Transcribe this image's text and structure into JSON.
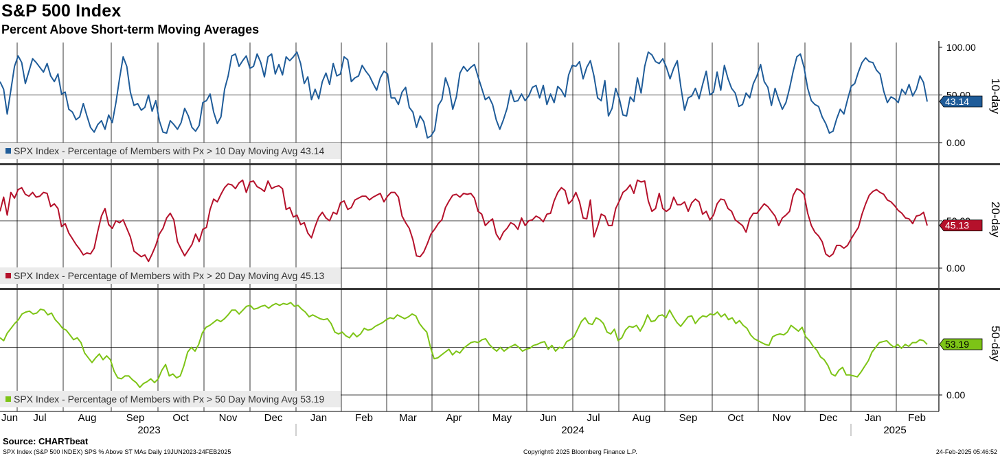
{
  "title": "S&P 500 Index",
  "subtitle": "Percent Above Short-term Moving Averages",
  "source": "Source: CHARTbeat",
  "footer": {
    "left": "SPX Index (S&P 500 INDEX) SPS % Above ST MAs  Daily 19JUN2023-24FEB2025",
    "center": "Copyright© 2025 Bloomberg Finance L.P.",
    "right": "24-Feb-2025 05:46:52"
  },
  "chart_data": {
    "type": "line",
    "x_range": [
      "2023-06-19",
      "2025-02-24"
    ],
    "x_month_labels": [
      "Jun",
      "Jul",
      "Aug",
      "Sep",
      "Oct",
      "Nov",
      "Dec",
      "Jan",
      "Feb",
      "Mar",
      "Apr",
      "May",
      "Jun",
      "Jul",
      "Aug",
      "Sep",
      "Oct",
      "Nov",
      "Dec",
      "Jan",
      "Feb"
    ],
    "x_year_labels": [
      "2023",
      "2024",
      "2025"
    ],
    "grid": true,
    "legend_position": "bottom-left",
    "panels": [
      {
        "name": "SPX Index - Percentage of Members with Px > 10 Day Moving Avg",
        "legend_value": "43.14",
        "last_value": "43.14",
        "side_label": "10-day",
        "color": "#1f5c99",
        "ylim": [
          0,
          100
        ],
        "y_ticks": [
          "100.00",
          "50.00",
          "0.00"
        ],
        "values": [
          64,
          56,
          30,
          55,
          80,
          91,
          84,
          62,
          75,
          88,
          84,
          79,
          74,
          83,
          70,
          64,
          72,
          51,
          53,
          35,
          32,
          24,
          27,
          41,
          28,
          16,
          11,
          19,
          23,
          14,
          29,
          21,
          42,
          67,
          90,
          80,
          53,
          39,
          41,
          34,
          37,
          50,
          33,
          44,
          23,
          11,
          10,
          23,
          19,
          14,
          21,
          36,
          28,
          16,
          12,
          18,
          42,
          44,
          51,
          32,
          20,
          27,
          56,
          70,
          91,
          93,
          80,
          86,
          91,
          78,
          80,
          93,
          84,
          69,
          90,
          93,
          72,
          82,
          71,
          90,
          86,
          90,
          95,
          83,
          62,
          69,
          45,
          56,
          46,
          64,
          73,
          61,
          83,
          70,
          72,
          90,
          87,
          64,
          68,
          70,
          81,
          75,
          70,
          62,
          55,
          68,
          75,
          72,
          47,
          47,
          40,
          53,
          58,
          37,
          32,
          16,
          28,
          22,
          5,
          7,
          13,
          39,
          45,
          68,
          57,
          35,
          48,
          73,
          80,
          75,
          79,
          82,
          69,
          57,
          45,
          48,
          40,
          24,
          14,
          24,
          36,
          55,
          43,
          44,
          51,
          44,
          49,
          58,
          60,
          47,
          60,
          40,
          51,
          42,
          59,
          55,
          48,
          71,
          81,
          80,
          85,
          67,
          79,
          86,
          70,
          47,
          44,
          65,
          28,
          36,
          57,
          46,
          29,
          28,
          48,
          43,
          68,
          52,
          80,
          95,
          92,
          85,
          83,
          88,
          79,
          67,
          78,
          86,
          58,
          34,
          47,
          49,
          57,
          46,
          61,
          75,
          50,
          53,
          74,
          55,
          81,
          67,
          57,
          52,
          38,
          40,
          52,
          47,
          62,
          70,
          82,
          64,
          58,
          39,
          57,
          45,
          35,
          42,
          57,
          75,
          90,
          93,
          79,
          57,
          44,
          40,
          38,
          27,
          20,
          10,
          12,
          25,
          35,
          30,
          45,
          59,
          62,
          74,
          84,
          89,
          85,
          84,
          76,
          72,
          54,
          42,
          48,
          46,
          42,
          56,
          51,
          61,
          49,
          56,
          70,
          63,
          43
        ]
      },
      {
        "name": "SPX Index - Percentage of Members with Px > 20 Day Moving Avg",
        "legend_value": "45.13",
        "last_value": "45.13",
        "side_label": "20-day",
        "color": "#b5112b",
        "ylim": [
          0,
          100
        ],
        "y_ticks": [
          "50.00",
          "0.00"
        ],
        "values": [
          60,
          75,
          56,
          80,
          74,
          83,
          85,
          78,
          76,
          80,
          75,
          76,
          80,
          79,
          65,
          68,
          63,
          44,
          47,
          37,
          31,
          25,
          20,
          14,
          16,
          15,
          21,
          39,
          55,
          63,
          46,
          42,
          50,
          48,
          51,
          42,
          33,
          18,
          15,
          12,
          14,
          7,
          15,
          24,
          36,
          42,
          53,
          58,
          51,
          28,
          20,
          13,
          19,
          25,
          36,
          28,
          41,
          43,
          62,
          73,
          70,
          78,
          85,
          89,
          88,
          84,
          90,
          93,
          80,
          91,
          92,
          86,
          84,
          81,
          92,
          84,
          86,
          87,
          84,
          62,
          64,
          54,
          56,
          46,
          48,
          37,
          32,
          44,
          54,
          59,
          53,
          50,
          59,
          57,
          69,
          71,
          62,
          64,
          72,
          74,
          76,
          76,
          72,
          75,
          77,
          79,
          70,
          76,
          80,
          80,
          75,
          55,
          48,
          42,
          30,
          13,
          12,
          17,
          26,
          36,
          41,
          47,
          51,
          64,
          71,
          77,
          78,
          75,
          79,
          78,
          79,
          74,
          60,
          57,
          45,
          49,
          52,
          36,
          30,
          38,
          42,
          48,
          46,
          41,
          53,
          45,
          50,
          51,
          55,
          53,
          49,
          57,
          58,
          71,
          80,
          85,
          82,
          68,
          72,
          80,
          70,
          53,
          52,
          72,
          33,
          44,
          57,
          55,
          45,
          45,
          63,
          71,
          80,
          83,
          88,
          79,
          93,
          91,
          92,
          71,
          60,
          63,
          79,
          63,
          60,
          63,
          75,
          67,
          67,
          70,
          60,
          69,
          73,
          70,
          57,
          60,
          51,
          56,
          68,
          73,
          72,
          63,
          60,
          51,
          48,
          45,
          38,
          52,
          58,
          58,
          63,
          68,
          65,
          60,
          55,
          45,
          53,
          56,
          60,
          77,
          84,
          82,
          78,
          58,
          45,
          38,
          34,
          28,
          15,
          12,
          15,
          24,
          24,
          21,
          24,
          31,
          37,
          43,
          57,
          68,
          77,
          81,
          83,
          80,
          78,
          72,
          70,
          66,
          61,
          58,
          53,
          52,
          47,
          55,
          56,
          59,
          45
        ]
      },
      {
        "name": "SPX Index - Percentage of Members with Px > 50 Day Moving Avg",
        "legend_value": "53.19",
        "last_value": "53.19",
        "side_label": "50-day",
        "color": "#7dc416",
        "ylim": [
          0,
          100
        ],
        "y_ticks": [
          "0.00"
        ],
        "values": [
          60,
          57,
          65,
          70,
          75,
          79,
          85,
          87,
          88,
          85,
          86,
          90,
          89,
          84,
          86,
          79,
          75,
          70,
          68,
          63,
          58,
          60,
          55,
          44,
          39,
          34,
          39,
          43,
          37,
          41,
          37,
          25,
          18,
          17,
          20,
          20,
          16,
          13,
          8,
          12,
          14,
          17,
          13,
          17,
          26,
          32,
          20,
          22,
          18,
          20,
          31,
          45,
          50,
          46,
          53,
          65,
          71,
          73,
          76,
          79,
          77,
          80,
          84,
          89,
          89,
          85,
          89,
          93,
          94,
          90,
          91,
          93,
          94,
          91,
          94,
          96,
          94,
          96,
          95,
          97,
          93,
          94,
          90,
          87,
          82,
          84,
          82,
          80,
          79,
          80,
          75,
          66,
          64,
          66,
          62,
          60,
          65,
          61,
          64,
          70,
          68,
          69,
          72,
          74,
          76,
          79,
          81,
          80,
          84,
          82,
          80,
          82,
          85,
          83,
          75,
          70,
          66,
          50,
          38,
          39,
          42,
          45,
          48,
          42,
          46,
          44,
          49,
          52,
          55,
          56,
          55,
          58,
          59,
          53,
          49,
          46,
          50,
          46,
          49,
          51,
          53,
          50,
          46,
          48,
          49,
          52,
          53,
          55,
          56,
          48,
          52,
          46,
          50,
          49,
          56,
          58,
          61,
          69,
          77,
          81,
          75,
          74,
          81,
          79,
          75,
          66,
          64,
          69,
          57,
          60,
          68,
          72,
          71,
          73,
          67,
          74,
          84,
          77,
          78,
          83,
          84,
          81,
          89,
          82,
          76,
          72,
          77,
          82,
          83,
          75,
          80,
          83,
          82,
          85,
          84,
          87,
          82,
          85,
          79,
          81,
          75,
          78,
          73,
          70,
          63,
          59,
          57,
          55,
          53,
          52,
          61,
          63,
          64,
          63,
          66,
          73,
          70,
          67,
          71,
          61,
          57,
          51,
          47,
          40,
          37,
          31,
          22,
          20,
          26,
          29,
          21,
          21,
          20,
          19,
          24,
          30,
          36,
          45,
          50,
          55,
          56,
          57,
          53,
          50,
          53,
          49,
          53,
          51,
          55,
          55,
          58,
          57,
          53
        ]
      }
    ]
  }
}
